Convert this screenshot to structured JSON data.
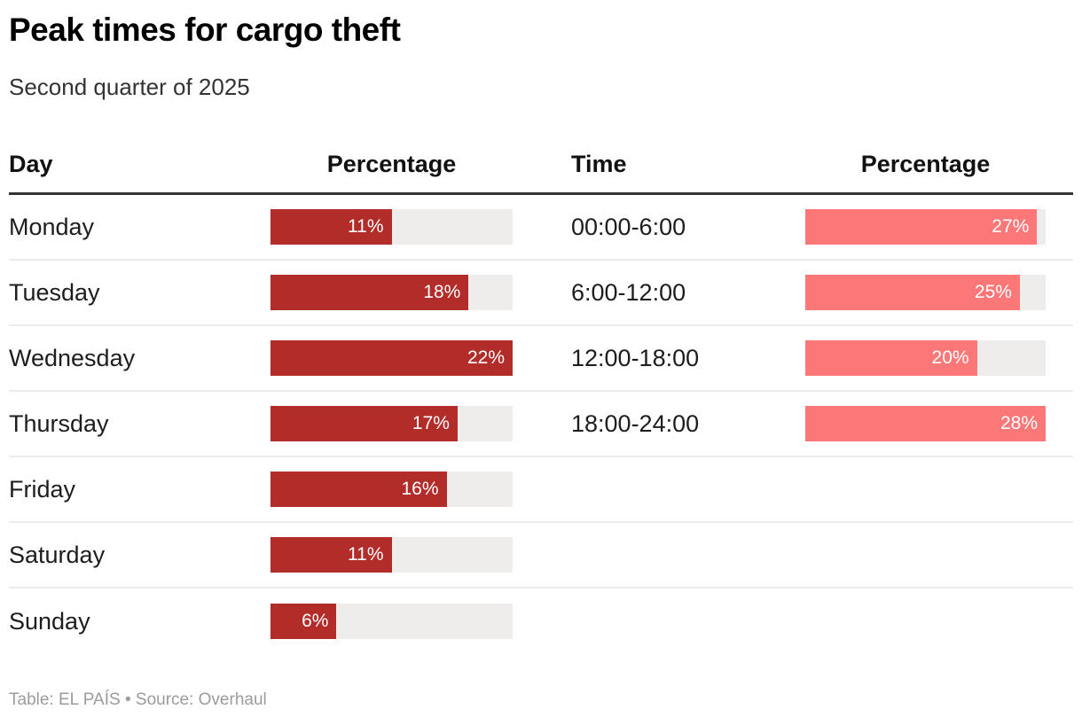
{
  "header": {
    "title": "Peak times for cargo theft",
    "subtitle": "Second quarter of 2025"
  },
  "table": {
    "columns": {
      "day": "Day",
      "day_percentage": "Percentage",
      "time": "Time",
      "time_percentage": "Percentage"
    },
    "day_section": {
      "max": 22,
      "rows": [
        {
          "label": "Monday",
          "value": 11,
          "display": "11%"
        },
        {
          "label": "Tuesday",
          "value": 18,
          "display": "18%"
        },
        {
          "label": "Wednesday",
          "value": 22,
          "display": "22%"
        },
        {
          "label": "Thursday",
          "value": 17,
          "display": "17%"
        },
        {
          "label": "Friday",
          "value": 16,
          "display": "16%"
        },
        {
          "label": "Saturday",
          "value": 11,
          "display": "11%"
        },
        {
          "label": "Sunday",
          "value": 6,
          "display": "6%"
        }
      ]
    },
    "time_section": {
      "max": 28,
      "rows": [
        {
          "label": "00:00-6:00",
          "value": 27,
          "display": "27%"
        },
        {
          "label": "6:00-12:00",
          "value": 25,
          "display": "25%"
        },
        {
          "label": "12:00-18:00",
          "value": 20,
          "display": "20%"
        },
        {
          "label": "18:00-24:00",
          "value": 28,
          "display": "28%"
        }
      ]
    }
  },
  "footer": {
    "credit": "Table: EL PAÍS • Source: Overhaul"
  },
  "colors": {
    "day_bar": "#b22c29",
    "time_bar": "#fc7777",
    "track": "#eeedec",
    "header_rule": "#333333",
    "row_rule": "#ececec"
  },
  "chart_data": [
    {
      "type": "bar",
      "title": "Peak times for cargo theft",
      "subtitle": "Second quarter of 2025",
      "orientation": "horizontal",
      "categories": [
        "Monday",
        "Tuesday",
        "Wednesday",
        "Thursday",
        "Friday",
        "Saturday",
        "Sunday"
      ],
      "values": [
        11,
        18,
        22,
        17,
        16,
        11,
        6
      ],
      "xlabel": "Day",
      "ylabel": "Percentage",
      "xlim": [
        0,
        22
      ],
      "bar_color": "#b22c29",
      "data_labels": [
        "11%",
        "18%",
        "22%",
        "17%",
        "16%",
        "11%",
        "6%"
      ]
    },
    {
      "type": "bar",
      "title": "Peak times for cargo theft",
      "subtitle": "Second quarter of 2025",
      "orientation": "horizontal",
      "categories": [
        "00:00-6:00",
        "6:00-12:00",
        "12:00-18:00",
        "18:00-24:00"
      ],
      "values": [
        27,
        25,
        20,
        28
      ],
      "xlabel": "Time",
      "ylabel": "Percentage",
      "xlim": [
        0,
        28
      ],
      "bar_color": "#fc7777",
      "data_labels": [
        "27%",
        "25%",
        "20%",
        "28%"
      ]
    }
  ]
}
